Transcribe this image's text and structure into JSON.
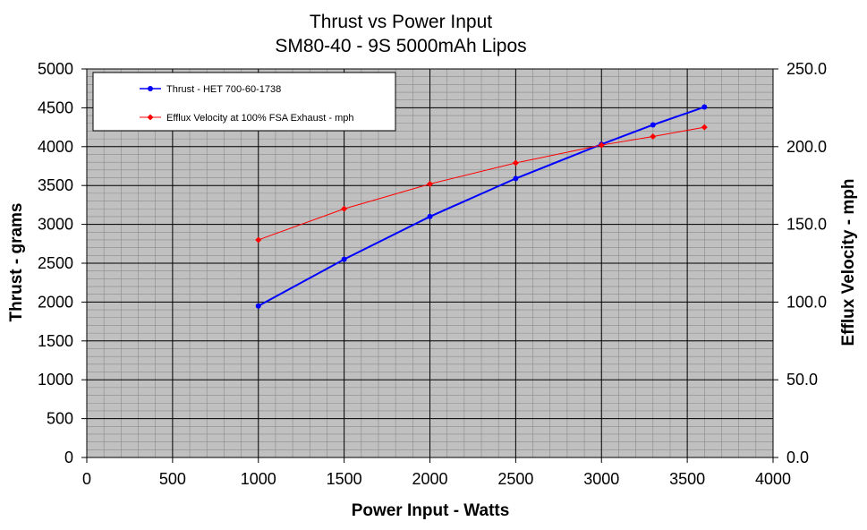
{
  "chart_data": {
    "type": "line",
    "title": "Thrust vs Power Input",
    "subtitle": "SM80-40 - 9S 5000mAh Lipos",
    "xlabel": "Power Input - Watts",
    "ylabel": "Thrust - grams",
    "y2label": "Efflux Velocity - mph",
    "xlim": [
      0,
      4000
    ],
    "ylim": [
      0,
      5000
    ],
    "y2lim": [
      0,
      250
    ],
    "x_ticks": [
      "0",
      "500",
      "1000",
      "1500",
      "2000",
      "2500",
      "3000",
      "3500",
      "4000"
    ],
    "y_ticks": [
      "0",
      "500",
      "1000",
      "1500",
      "2000",
      "2500",
      "3000",
      "3500",
      "4000",
      "4500",
      "5000"
    ],
    "y2_ticks": [
      "0.0",
      "50.0",
      "100.0",
      "150.0",
      "200.0",
      "250.0"
    ],
    "grid": true,
    "legend_position": "top-left",
    "series": [
      {
        "name": "Thrust - HET 700-60-1738",
        "axis": "left",
        "color": "#0000ff",
        "x": [
          1000,
          1500,
          2000,
          2500,
          3000,
          3300,
          3600
        ],
        "y": [
          1950,
          2550,
          3100,
          3590,
          4030,
          4280,
          4510
        ]
      },
      {
        "name": "Efflux Velocity at 100% FSA Exhaust - mph",
        "axis": "right",
        "color": "#ff0000",
        "x": [
          1000,
          1500,
          2000,
          2500,
          3000,
          3300,
          3600
        ],
        "y": [
          140,
          160,
          176,
          189.5,
          201,
          206.5,
          212.5
        ]
      }
    ]
  }
}
